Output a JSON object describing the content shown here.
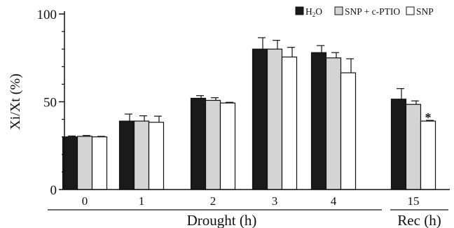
{
  "chart_data": {
    "type": "bar",
    "title": "",
    "ylabel": "Xi/Xt (%)",
    "ylim": [
      0,
      100
    ],
    "yticks": [
      0,
      50,
      100
    ],
    "grid": false,
    "legend_position": "top-right",
    "categories": [
      "0",
      "1",
      "2",
      "3",
      "4",
      "15"
    ],
    "category_groups": [
      {
        "label": "Drought (h)",
        "categories": [
          "0",
          "1",
          "2",
          "3",
          "4"
        ]
      },
      {
        "label": "Rec (h)",
        "categories": [
          "15"
        ]
      }
    ],
    "series": [
      {
        "name": "H2O",
        "legend_main": "H",
        "legend_sub": "2",
        "legend_tail": "O",
        "color": "#1a1a1a",
        "values": [
          30,
          39,
          52,
          80,
          78,
          51.5
        ],
        "errors": [
          0.5,
          4,
          1.5,
          6.5,
          4,
          6
        ]
      },
      {
        "name": "SNP + c-PTIO",
        "color": "#d4d4d4",
        "values": [
          30.3,
          39,
          50.8,
          80,
          75,
          48.5
        ],
        "errors": [
          0.5,
          3,
          1.5,
          5,
          3,
          2
        ]
      },
      {
        "name": "SNP",
        "color": "#ffffff",
        "values": [
          30,
          38.3,
          49.3,
          75.5,
          66.5,
          39
        ],
        "errors": [
          0.3,
          3.5,
          0.4,
          5.5,
          8,
          0.4
        ]
      }
    ],
    "annotations": [
      {
        "text": "*",
        "category": "15",
        "series": "SNP"
      }
    ]
  }
}
